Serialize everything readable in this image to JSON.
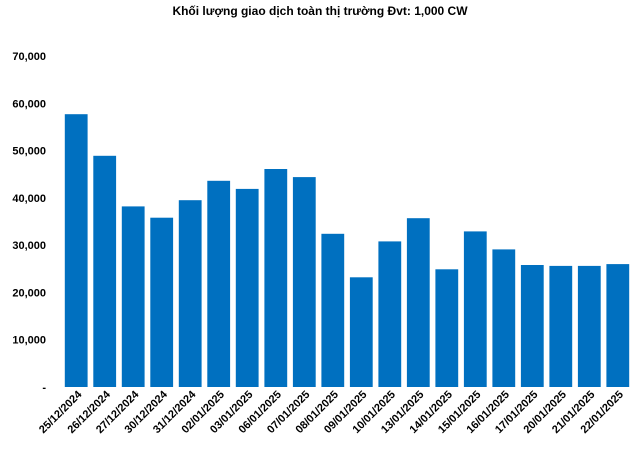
{
  "colors": {
    "bar": "#0070C0",
    "text": "#000000",
    "background": "#ffffff"
  },
  "chart_data": {
    "type": "bar",
    "title": "Khối lượng giao dịch toàn thị trường Đvt: 1,000 CW",
    "xlabel": "",
    "ylabel": "",
    "ylim": [
      0,
      70000
    ],
    "grid": false,
    "legend": "none",
    "categories": [
      "25/12/2024",
      "26/12/2024",
      "27/12/2024",
      "30/12/2024",
      "31/12/2024",
      "02/01/2025",
      "03/01/2025",
      "06/01/2025",
      "07/01/2025",
      "08/01/2025",
      "09/01/2025",
      "10/01/2025",
      "13/01/2025",
      "14/01/2025",
      "15/01/2025",
      "16/01/2025",
      "17/01/2025",
      "20/01/2025",
      "21/01/2025",
      "22/01/2025"
    ],
    "values": [
      57700,
      48900,
      38200,
      35800,
      39500,
      43600,
      41900,
      46100,
      44400,
      32400,
      23200,
      30800,
      35700,
      24900,
      32900,
      29100,
      25800,
      25600,
      25600,
      26000
    ],
    "y_ticks": [
      0,
      10000,
      20000,
      30000,
      40000,
      50000,
      60000,
      70000
    ],
    "y_tick_labels": [
      "-",
      "10,000",
      "20,000",
      "30,000",
      "40,000",
      "50,000",
      "60,000",
      "70,000"
    ]
  }
}
